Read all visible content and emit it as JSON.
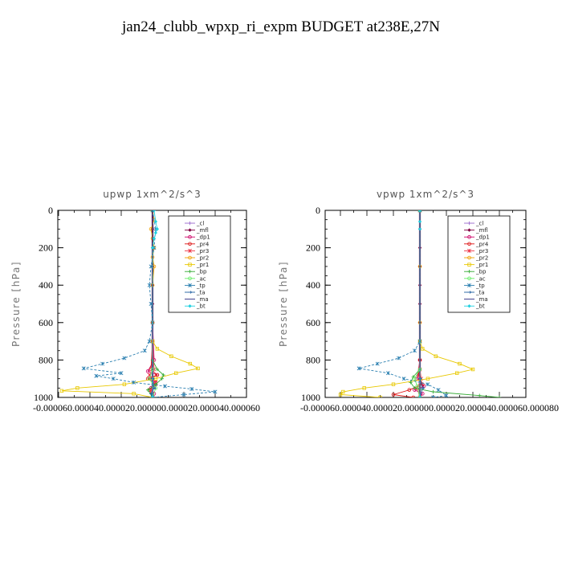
{
  "title": "jan24_clubb_wpxp_ri_expm  BUDGET at238E,27N",
  "chart_data": [
    {
      "type": "line",
      "title": "upwp   1xm^2/s^3",
      "ylabel": "Pressure [hPa]",
      "ylim": [
        1000,
        0
      ],
      "xlim": [
        -6e-05,
        6e-05
      ],
      "y_ticks": [
        "0",
        "200",
        "400",
        "600",
        "800",
        "1000"
      ],
      "x_tick_text": "-0.000060.000040.000020.000000.000020.000040.000060",
      "legend": [
        "_cl",
        "_mfl",
        "_dp1",
        "_pr4",
        "_pr3",
        "_pr2",
        "_pr1",
        "_bp",
        "_ac",
        "_tp",
        "_ta",
        "_ma",
        "_bt"
      ],
      "grid": false,
      "legend_position": "top-right",
      "series": [
        {
          "name": "_cl",
          "color": "#9966cc",
          "marker": "plus",
          "p": [
            0,
            300,
            600,
            900,
            1000
          ],
          "v": [
            0,
            0,
            0,
            0,
            0
          ]
        },
        {
          "name": "_mfl",
          "color": "#800040",
          "marker": "diamond",
          "p": [
            0,
            100,
            200,
            300,
            400,
            500,
            600,
            700,
            800,
            900,
            1000
          ],
          "v": [
            0,
            0,
            0,
            0,
            0,
            0,
            0,
            0,
            0,
            0,
            0
          ]
        },
        {
          "name": "_dp1",
          "color": "#cc0066",
          "marker": "circle",
          "p": [
            0,
            600,
            800,
            860,
            880,
            900,
            920,
            950,
            980,
            1000
          ],
          "v": [
            0,
            0,
            1e-06,
            -3e-06,
            3e-06,
            -2e-06,
            2e-06,
            -1e-06,
            1e-06,
            0
          ]
        },
        {
          "name": "_pr4",
          "color": "#dd1111",
          "marker": "circle",
          "p": [
            0,
            700,
            850,
            880,
            900,
            930,
            960,
            1000
          ],
          "v": [
            0,
            0,
            -1e-06,
            3e-06,
            -3e-06,
            2e-06,
            -2e-06,
            0
          ]
        },
        {
          "name": "_pr3",
          "color": "#ee3344",
          "marker": "star",
          "p": [
            0,
            700,
            850,
            880,
            920,
            960,
            1000
          ],
          "v": [
            0,
            0,
            1e-06,
            -2e-06,
            2e-06,
            -1e-06,
            0
          ]
        },
        {
          "name": "_pr2",
          "color": "#f0a000",
          "marker": "circle",
          "p": [
            0,
            50,
            100,
            150,
            200,
            250,
            300,
            400,
            600,
            1000
          ],
          "v": [
            0,
            1e-06,
            -1e-06,
            0,
            1e-06,
            0,
            1e-06,
            0,
            0,
            0
          ]
        },
        {
          "name": "_pr1",
          "color": "#e8c800",
          "marker": "square",
          "p": [
            0,
            700,
            740,
            780,
            820,
            845,
            870,
            900,
            930,
            950,
            965,
            980,
            1000
          ],
          "v": [
            0,
            0,
            3e-06,
            1.2e-05,
            2.4e-05,
            2.9e-05,
            1.5e-05,
            2e-06,
            -1.8e-05,
            -4.8e-05,
            -5.8e-05,
            -1.2e-05,
            0
          ]
        },
        {
          "name": "_bp",
          "color": "#33aa33",
          "marker": "plus",
          "p": [
            0,
            800,
            850,
            880,
            900,
            930,
            960,
            1000
          ],
          "v": [
            0,
            0,
            3e-06,
            7e-06,
            6e-06,
            2e-06,
            -3e-06,
            0
          ]
        },
        {
          "name": "_ac",
          "color": "#66ee66",
          "marker": "circle",
          "p": [
            0,
            850,
            900,
            950,
            1000
          ],
          "v": [
            0,
            0,
            -2e-06,
            2e-06,
            0
          ]
        },
        {
          "name": "_tp",
          "color": "#2a7fb0",
          "marker": "star",
          "p": [
            0,
            100,
            200,
            300,
            400,
            500,
            600,
            700,
            750,
            790,
            820,
            845,
            870,
            885,
            900,
            920,
            940,
            955,
            970,
            985,
            1000
          ],
          "v": [
            0,
            2e-06,
            1e-06,
            -1e-06,
            -2e-06,
            -1e-06,
            0,
            -2e-06,
            -5e-06,
            -1.8e-05,
            -3.2e-05,
            -4.4e-05,
            -2e-05,
            -3.6e-05,
            -2.5e-05,
            -1.2e-05,
            8e-06,
            2.5e-05,
            4e-05,
            2e-05,
            0
          ]
        },
        {
          "name": "_ta",
          "color": "#1f5fa0",
          "marker": "arrow",
          "p": [
            0,
            900,
            950,
            980,
            1000
          ],
          "v": [
            0,
            0,
            1e-06,
            -1e-06,
            0
          ]
        },
        {
          "name": "_ma",
          "color": "#2a2a80",
          "marker": "dash",
          "p": [
            0,
            500,
            1000
          ],
          "v": [
            0,
            0,
            0
          ]
        },
        {
          "name": "_bt",
          "color": "#20d0e0",
          "marker": "diamond",
          "p": [
            0,
            60,
            100,
            120,
            150,
            200,
            1000
          ],
          "v": [
            1e-06,
            2e-06,
            3e-06,
            2e-06,
            1e-06,
            0,
            0
          ]
        }
      ]
    },
    {
      "type": "line",
      "title": "vpwp   1xm^2/s^3",
      "ylabel": "Pressure [hPa]",
      "ylim": [
        1000,
        0
      ],
      "xlim": [
        -6e-05,
        8e-05
      ],
      "y_ticks": [
        "0",
        "200",
        "400",
        "600",
        "800",
        "1000"
      ],
      "x_tick_text": "-0.000060.000040.000020.000000.000020.000040.000060.000080",
      "legend": [
        "_cl",
        "_mfl",
        "_dp1",
        "_pr4",
        "_pr3",
        "_pr2",
        "_pr1",
        "_bp",
        "_ac",
        "_tp",
        "_ta",
        "_ma",
        "_bt"
      ],
      "grid": false,
      "legend_position": "top-right",
      "series": [
        {
          "name": "_cl",
          "color": "#9966cc",
          "marker": "plus",
          "p": [
            0,
            300,
            600,
            900,
            1000
          ],
          "v": [
            0,
            0,
            0,
            0,
            0
          ]
        },
        {
          "name": "_mfl",
          "color": "#800040",
          "marker": "diamond",
          "p": [
            0,
            100,
            200,
            300,
            400,
            500,
            600,
            700,
            800,
            900,
            1000
          ],
          "v": [
            0,
            0,
            0,
            0,
            0,
            0,
            0,
            0,
            0,
            0,
            0
          ]
        },
        {
          "name": "_dp1",
          "color": "#cc0066",
          "marker": "circle",
          "p": [
            0,
            800,
            900,
            940,
            960,
            980,
            1000
          ],
          "v": [
            0,
            0,
            -2e-06,
            3e-06,
            -4e-06,
            2e-06,
            0
          ]
        },
        {
          "name": "_pr4",
          "color": "#dd1111",
          "marker": "circle",
          "p": [
            0,
            800,
            880,
            930,
            960,
            985,
            1000
          ],
          "v": [
            0,
            0,
            -1e-06,
            2e-06,
            -8e-06,
            -2e-05,
            -5e-06
          ]
        },
        {
          "name": "_pr3",
          "color": "#ee3344",
          "marker": "star",
          "p": [
            0,
            850,
            900,
            950,
            1000
          ],
          "v": [
            0,
            0,
            1e-06,
            -2e-06,
            0
          ]
        },
        {
          "name": "_pr2",
          "color": "#f0a000",
          "marker": "circle",
          "p": [
            0,
            300,
            600,
            1000
          ],
          "v": [
            0,
            0,
            0,
            0
          ]
        },
        {
          "name": "_pr1",
          "color": "#e8c800",
          "marker": "square",
          "p": [
            0,
            700,
            740,
            780,
            820,
            850,
            870,
            900,
            930,
            950,
            970,
            985,
            1000
          ],
          "v": [
            0,
            0,
            2e-06,
            1.2e-05,
            3e-05,
            4e-05,
            2.8e-05,
            6e-06,
            -2e-05,
            -4.2e-05,
            -5.8e-05,
            -6e-05,
            -3e-05
          ]
        },
        {
          "name": "_bp",
          "color": "#33aa33",
          "marker": "plus",
          "p": [
            0,
            850,
            890,
            920,
            950,
            970,
            990,
            1000
          ],
          "v": [
            0,
            0,
            -5e-06,
            -7e-06,
            -4e-06,
            1e-05,
            4.5e-05,
            6e-05
          ]
        },
        {
          "name": "_ac",
          "color": "#66ee66",
          "marker": "circle",
          "p": [
            0,
            850,
            900,
            940,
            1000
          ],
          "v": [
            0,
            0,
            -4e-06,
            -2e-06,
            0
          ]
        },
        {
          "name": "_tp",
          "color": "#2a7fb0",
          "marker": "star",
          "p": [
            0,
            700,
            750,
            790,
            820,
            845,
            870,
            900,
            930,
            960,
            990,
            1000
          ],
          "v": [
            0,
            0,
            -4e-06,
            -1.6e-05,
            -3.2e-05,
            -4.6e-05,
            -2.4e-05,
            -1.2e-05,
            6e-06,
            1.4e-05,
            2e-05,
            1e-05
          ]
        },
        {
          "name": "_ta",
          "color": "#1f5fa0",
          "marker": "arrow",
          "p": [
            0,
            900,
            950,
            1000
          ],
          "v": [
            0,
            0,
            2e-06,
            0
          ]
        },
        {
          "name": "_ma",
          "color": "#2a2a80",
          "marker": "dash",
          "p": [
            0,
            500,
            1000
          ],
          "v": [
            0,
            0,
            0
          ]
        },
        {
          "name": "_bt",
          "color": "#20d0e0",
          "marker": "diamond",
          "p": [
            0,
            60,
            100,
            1000
          ],
          "v": [
            0,
            0,
            0,
            0
          ]
        }
      ]
    }
  ]
}
